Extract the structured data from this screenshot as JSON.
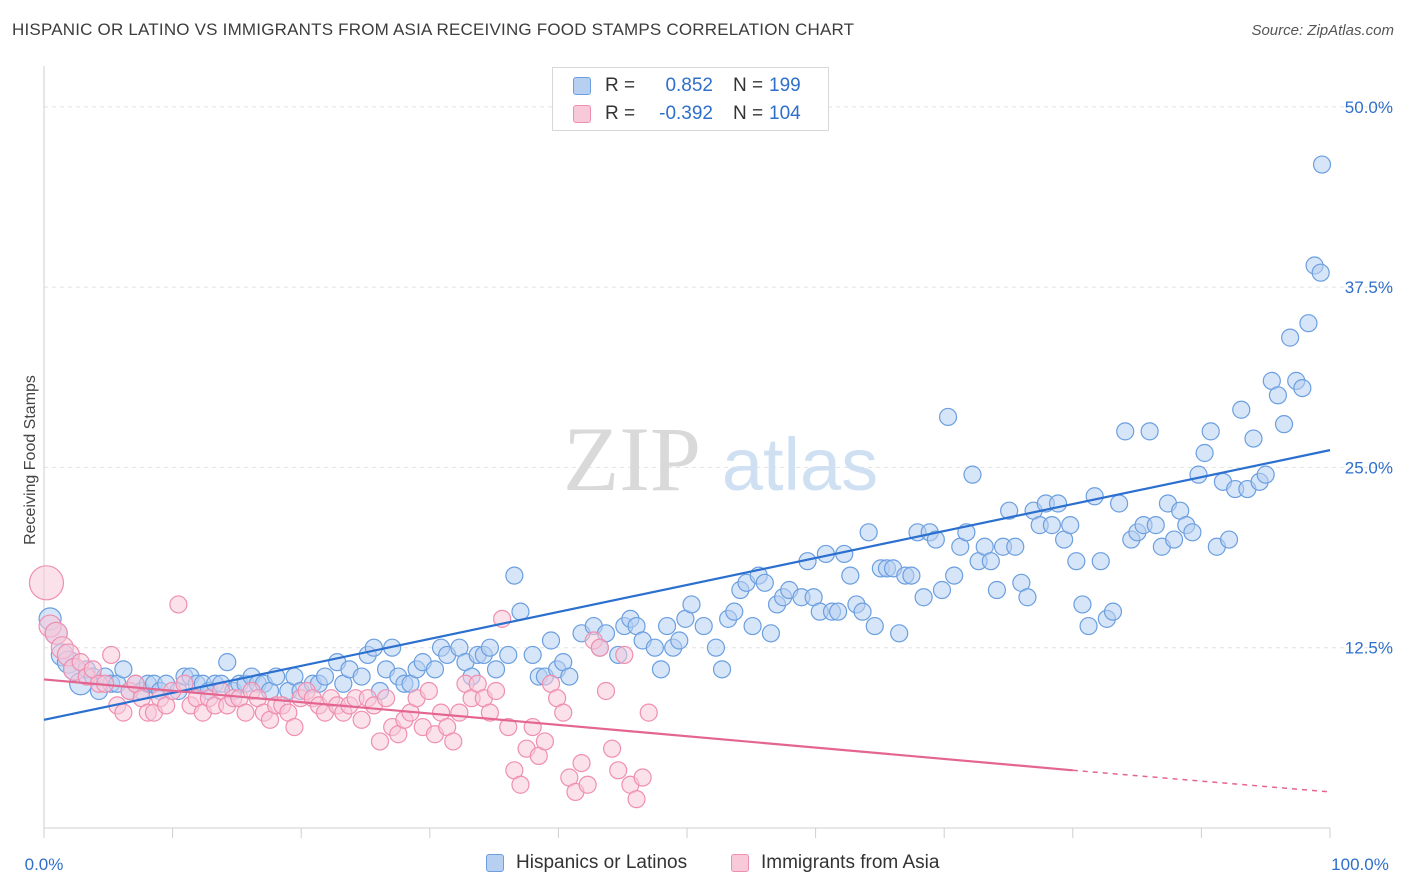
{
  "title": "HISPANIC OR LATINO VS IMMIGRANTS FROM ASIA RECEIVING FOOD STAMPS CORRELATION CHART",
  "source": "Source: ZipAtlas.com",
  "watermark": {
    "zip": "ZIP",
    "atlas": "atlas"
  },
  "legend_top": {
    "rows": [
      {
        "r_label": "R =",
        "r_value": "0.852",
        "n_label": "N =",
        "n_value": "199",
        "color": "#6b9fe0",
        "fill": "#b7d0f2"
      },
      {
        "r_label": "R =",
        "r_value": "-0.392",
        "n_label": "N =",
        "n_value": "104",
        "color": "#ef8fb0",
        "fill": "#f8c9d9"
      }
    ]
  },
  "legend_bottom": {
    "items": [
      {
        "label": "Hispanics or Latinos",
        "color": "#6b9fe0",
        "fill": "#b7d0f2"
      },
      {
        "label": "Immigrants from Asia",
        "color": "#ef8fb0",
        "fill": "#f8c9d9"
      }
    ]
  },
  "chart_data": {
    "type": "scatter",
    "title": "HISPANIC OR LATINO VS IMMIGRANTS FROM ASIA RECEIVING FOOD STAMPS CORRELATION CHART",
    "xlabel": "",
    "ylabel": "Receiving Food Stamps",
    "xlim": [
      0,
      100
    ],
    "ylim": [
      0,
      52
    ],
    "x_tick_labels": [
      "0.0%",
      "100.0%"
    ],
    "y_ticks": [
      12.5,
      25.0,
      37.5,
      50.0
    ],
    "y_tick_labels": [
      "12.5%",
      "25.0%",
      "37.5%",
      "50.0%"
    ],
    "grid": true,
    "legend_position": "top-center",
    "series": [
      {
        "name": "Hispanics or Latinos",
        "color": "#6b9fe0",
        "fill": "#b7d0f2",
        "trend": {
          "x": [
            0,
            100
          ],
          "y": [
            7.5,
            26.2
          ],
          "style": "solid",
          "color": "#2b6fcf"
        },
        "points": [
          [
            0.5,
            14.5
          ],
          [
            1,
            13.5
          ],
          [
            1.5,
            12
          ],
          [
            2,
            11.5
          ],
          [
            2.5,
            11
          ],
          [
            3,
            10
          ],
          [
            3.5,
            11
          ],
          [
            4,
            10.5
          ],
          [
            4.5,
            9.5
          ],
          [
            5,
            10.5
          ],
          [
            5.5,
            10
          ],
          [
            6,
            10
          ],
          [
            6.5,
            11
          ],
          [
            7,
            9.5
          ],
          [
            7.5,
            10
          ],
          [
            8,
            9.5
          ],
          [
            8.5,
            10
          ],
          [
            9,
            10
          ],
          [
            9.5,
            9.5
          ],
          [
            10,
            10
          ],
          [
            11,
            9.5
          ],
          [
            11.5,
            10.5
          ],
          [
            12,
            10.5
          ],
          [
            12.5,
            10
          ],
          [
            13,
            10
          ],
          [
            13.5,
            9.5
          ],
          [
            14,
            10
          ],
          [
            14.5,
            10
          ],
          [
            15,
            11.5
          ],
          [
            15.5,
            9.5
          ],
          [
            16,
            10
          ],
          [
            16.5,
            10
          ],
          [
            17,
            10.5
          ],
          [
            17.5,
            10
          ],
          [
            18,
            10
          ],
          [
            18.5,
            9.5
          ],
          [
            19,
            10.5
          ],
          [
            20,
            9.5
          ],
          [
            20.5,
            10.5
          ],
          [
            21,
            9.5
          ],
          [
            22,
            10
          ],
          [
            22.5,
            10
          ],
          [
            23,
            10.5
          ],
          [
            24,
            11.5
          ],
          [
            24.5,
            10
          ],
          [
            25,
            11
          ],
          [
            26,
            10.5
          ],
          [
            26.5,
            12
          ],
          [
            27,
            12.5
          ],
          [
            27.5,
            9.5
          ],
          [
            28,
            11
          ],
          [
            28.5,
            12.5
          ],
          [
            29,
            10.5
          ],
          [
            29.5,
            10
          ],
          [
            30,
            10
          ],
          [
            30.5,
            11
          ],
          [
            31,
            11.5
          ],
          [
            32,
            11
          ],
          [
            32.5,
            12.5
          ],
          [
            33,
            12
          ],
          [
            34,
            12.5
          ],
          [
            34.5,
            11.5
          ],
          [
            35,
            10.5
          ],
          [
            35.5,
            12
          ],
          [
            36,
            12
          ],
          [
            36.5,
            12.5
          ],
          [
            37,
            11
          ],
          [
            38,
            12
          ],
          [
            38.5,
            17.5
          ],
          [
            39,
            15
          ],
          [
            40,
            12
          ],
          [
            40.5,
            10.5
          ],
          [
            41,
            10.5
          ],
          [
            41.5,
            13
          ],
          [
            42,
            11
          ],
          [
            42.5,
            11.5
          ],
          [
            43,
            10.5
          ],
          [
            44,
            13.5
          ],
          [
            45,
            14
          ],
          [
            45.5,
            12.5
          ],
          [
            46,
            13.5
          ],
          [
            47,
            12
          ],
          [
            47.5,
            14
          ],
          [
            48,
            14.5
          ],
          [
            48.5,
            14
          ],
          [
            49,
            13
          ],
          [
            50,
            12.5
          ],
          [
            50.5,
            11
          ],
          [
            51,
            14
          ],
          [
            51.5,
            12.5
          ],
          [
            52,
            13
          ],
          [
            52.5,
            14.5
          ],
          [
            53,
            15.5
          ],
          [
            54,
            14
          ],
          [
            55,
            12.5
          ],
          [
            55.5,
            11
          ],
          [
            56,
            14.5
          ],
          [
            56.5,
            15
          ],
          [
            57,
            16.5
          ],
          [
            57.5,
            17
          ],
          [
            58,
            14
          ],
          [
            58.5,
            17.5
          ],
          [
            59,
            17
          ],
          [
            59.5,
            13.5
          ],
          [
            60,
            15.5
          ],
          [
            60.5,
            16
          ],
          [
            61,
            16.5
          ],
          [
            62,
            16
          ],
          [
            62.5,
            18.5
          ],
          [
            63,
            16
          ],
          [
            63.5,
            15
          ],
          [
            64,
            19
          ],
          [
            64.5,
            15
          ],
          [
            65,
            15
          ],
          [
            65.5,
            19
          ],
          [
            66,
            17.5
          ],
          [
            66.5,
            15.5
          ],
          [
            67,
            15
          ],
          [
            67.5,
            20.5
          ],
          [
            68,
            14
          ],
          [
            68.5,
            18
          ],
          [
            69,
            18
          ],
          [
            69.5,
            18
          ],
          [
            70,
            13.5
          ],
          [
            70.5,
            17.5
          ],
          [
            71,
            17.5
          ],
          [
            71.5,
            20.5
          ],
          [
            72,
            16
          ],
          [
            72.5,
            20.5
          ],
          [
            73,
            20
          ],
          [
            73.5,
            16.5
          ],
          [
            74,
            28.5
          ],
          [
            74.5,
            17.5
          ],
          [
            75,
            19.5
          ],
          [
            75.5,
            20.5
          ],
          [
            76,
            24.5
          ],
          [
            76.5,
            18.5
          ],
          [
            77,
            19.5
          ],
          [
            77.5,
            18.5
          ],
          [
            78,
            16.5
          ],
          [
            78.5,
            19.5
          ],
          [
            79,
            22
          ],
          [
            79.5,
            19.5
          ],
          [
            80,
            17
          ],
          [
            80.5,
            16
          ],
          [
            81,
            22
          ],
          [
            81.5,
            21
          ],
          [
            82,
            22.5
          ],
          [
            82.5,
            21
          ],
          [
            83,
            22.5
          ],
          [
            83.5,
            20
          ],
          [
            84,
            21
          ],
          [
            84.5,
            18.5
          ],
          [
            85,
            15.5
          ],
          [
            85.5,
            14
          ],
          [
            86,
            23
          ],
          [
            86.5,
            18.5
          ],
          [
            87,
            14.5
          ],
          [
            87.5,
            15
          ],
          [
            88,
            22.5
          ],
          [
            88.5,
            27.5
          ],
          [
            89,
            20
          ],
          [
            89.5,
            20.5
          ],
          [
            90,
            21
          ],
          [
            90.5,
            27.5
          ],
          [
            91,
            21
          ],
          [
            91.5,
            19.5
          ],
          [
            92,
            22.5
          ],
          [
            92.5,
            20
          ],
          [
            93,
            22
          ],
          [
            93.5,
            21
          ],
          [
            94,
            20.5
          ],
          [
            94.5,
            24.5
          ],
          [
            95,
            26
          ],
          [
            95.5,
            27.5
          ],
          [
            96,
            19.5
          ],
          [
            96.5,
            24
          ],
          [
            97,
            20
          ],
          [
            97.5,
            23.5
          ],
          [
            98,
            29
          ],
          [
            98.5,
            23.5
          ],
          [
            99,
            27
          ],
          [
            99.5,
            24
          ],
          [
            100,
            24.5
          ],
          [
            100.5,
            31
          ],
          [
            101,
            30
          ],
          [
            101.5,
            28
          ],
          [
            102,
            34
          ],
          [
            102.5,
            31
          ],
          [
            103,
            30.5
          ],
          [
            103.5,
            35
          ],
          [
            104,
            39
          ],
          [
            104.5,
            38.5
          ],
          [
            105,
            46
          ]
        ]
      },
      {
        "name": "Immigrants from Asia",
        "color": "#ef8fb0",
        "fill": "#f8c9d9",
        "trend": {
          "x": [
            0,
            80
          ],
          "y": [
            10.3,
            4.0
          ],
          "style": "solid",
          "dash_to": [
            100,
            2.5
          ],
          "color": "#e4658f"
        },
        "points": [
          [
            0.2,
            17
          ],
          [
            0.5,
            14
          ],
          [
            1,
            13.5
          ],
          [
            1.5,
            12.5
          ],
          [
            2,
            12
          ],
          [
            2.5,
            11
          ],
          [
            3,
            11.5
          ],
          [
            3.5,
            10.5
          ],
          [
            4,
            11
          ],
          [
            4.5,
            10
          ],
          [
            5,
            10
          ],
          [
            5.5,
            12
          ],
          [
            6,
            8.5
          ],
          [
            6.5,
            8
          ],
          [
            7,
            9.5
          ],
          [
            7.5,
            10
          ],
          [
            8,
            9
          ],
          [
            8.5,
            8
          ],
          [
            9,
            8
          ],
          [
            9.5,
            9
          ],
          [
            10,
            8.5
          ],
          [
            10.5,
            9.5
          ],
          [
            11,
            15.5
          ],
          [
            11.5,
            10
          ],
          [
            12,
            8.5
          ],
          [
            12.5,
            9
          ],
          [
            13,
            8
          ],
          [
            13.5,
            9
          ],
          [
            14,
            8.5
          ],
          [
            14.5,
            9.5
          ],
          [
            15,
            8.5
          ],
          [
            15.5,
            9
          ],
          [
            16,
            9
          ],
          [
            16.5,
            8
          ],
          [
            17,
            9.5
          ],
          [
            17.5,
            9
          ],
          [
            18,
            8
          ],
          [
            18.5,
            7.5
          ],
          [
            19,
            8.5
          ],
          [
            19.5,
            8.5
          ],
          [
            20,
            8
          ],
          [
            20.5,
            7
          ],
          [
            21,
            9
          ],
          [
            21.5,
            9.5
          ],
          [
            22,
            9
          ],
          [
            22.5,
            8.5
          ],
          [
            23,
            8
          ],
          [
            23.5,
            9
          ],
          [
            24,
            8.5
          ],
          [
            24.5,
            8
          ],
          [
            25,
            8.5
          ],
          [
            25.5,
            9
          ],
          [
            26,
            7.5
          ],
          [
            26.5,
            9
          ],
          [
            27,
            8.5
          ],
          [
            27.5,
            6
          ],
          [
            28,
            9
          ],
          [
            28.5,
            7
          ],
          [
            29,
            6.5
          ],
          [
            29.5,
            7.5
          ],
          [
            30,
            8
          ],
          [
            30.5,
            9
          ],
          [
            31,
            7
          ],
          [
            31.5,
            9.5
          ],
          [
            32,
            6.5
          ],
          [
            32.5,
            8
          ],
          [
            33,
            7
          ],
          [
            33.5,
            6
          ],
          [
            34,
            8
          ],
          [
            34.5,
            10
          ],
          [
            35,
            9
          ],
          [
            35.5,
            10
          ],
          [
            36,
            9
          ],
          [
            36.5,
            8
          ],
          [
            37,
            9.5
          ],
          [
            37.5,
            14.5
          ],
          [
            38,
            7
          ],
          [
            38.5,
            4
          ],
          [
            39,
            3
          ],
          [
            39.5,
            5.5
          ],
          [
            40,
            7
          ],
          [
            40.5,
            5
          ],
          [
            41,
            6
          ],
          [
            41.5,
            10
          ],
          [
            42,
            9
          ],
          [
            42.5,
            8
          ],
          [
            43,
            3.5
          ],
          [
            43.5,
            2.5
          ],
          [
            44,
            4.5
          ],
          [
            44.5,
            3
          ],
          [
            45,
            13
          ],
          [
            45.5,
            12.5
          ],
          [
            46,
            9.5
          ],
          [
            46.5,
            5.5
          ],
          [
            47,
            4
          ],
          [
            47.5,
            12
          ],
          [
            48,
            3
          ],
          [
            48.5,
            2
          ],
          [
            49,
            3.5
          ],
          [
            49.5,
            8
          ]
        ]
      }
    ]
  }
}
